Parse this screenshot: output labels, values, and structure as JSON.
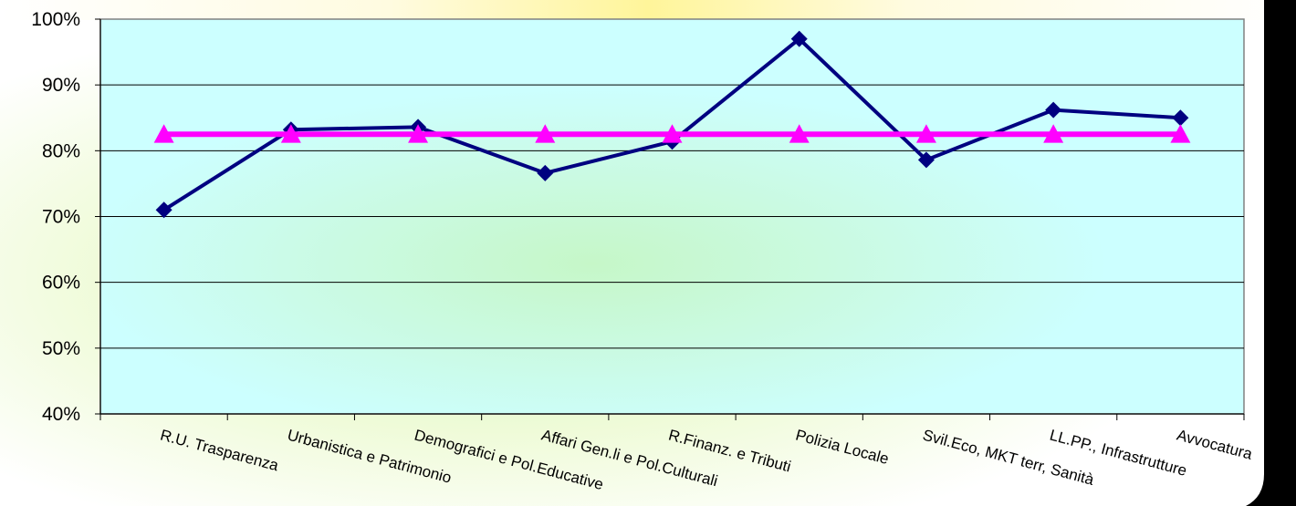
{
  "chart_data": {
    "type": "line",
    "title": "",
    "xlabel": "",
    "ylabel": "",
    "categories": [
      "R.U. Trasparenza",
      "Urbanistica e Patrimonio",
      "Demografici e Pol.Educative",
      "Affari Gen.li e Pol.Culturali",
      "R.Finanz. e Tributi",
      "Polizia Locale",
      "Svil.Eco, MKT terr, Sanità",
      "LL.PP., Infrastrutture",
      "Avvocatura"
    ],
    "series": [
      {
        "marker": "diamond",
        "color": "#000080",
        "values": [
          71.0,
          83.2,
          83.6,
          76.6,
          81.4,
          97.0,
          78.6,
          86.2,
          85.0
        ]
      },
      {
        "marker": "triangle",
        "color": "#ff00ff",
        "values": [
          82.5,
          82.5,
          82.5,
          82.5,
          82.5,
          82.5,
          82.5,
          82.5,
          82.5
        ]
      }
    ],
    "ylim": [
      40,
      100
    ],
    "yticks": [
      40,
      50,
      60,
      70,
      80,
      90,
      100
    ],
    "ytick_format": "percent",
    "grid": "horizontal",
    "legend": "none",
    "plot_background": "#ccffff",
    "outer_background": "#ffffcc",
    "right_border_color": "#000000"
  }
}
